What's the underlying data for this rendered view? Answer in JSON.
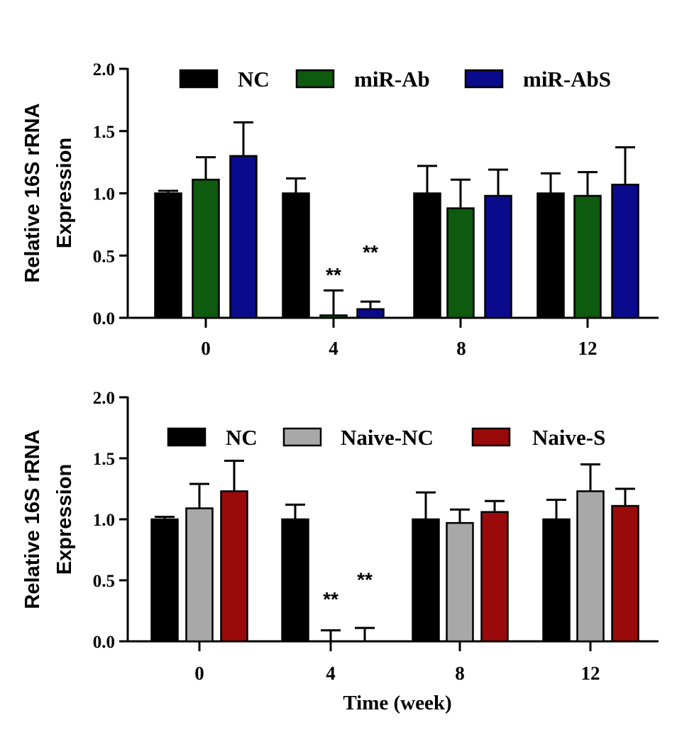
{
  "chart_data": [
    {
      "type": "bar",
      "ylabel": [
        "Relative 16S rRNA",
        "Expression"
      ],
      "xlabel": "",
      "ylim": [
        0,
        2.0
      ],
      "yticks": [
        "0.0",
        "0.5",
        "1.0",
        "1.5",
        "2.0"
      ],
      "categories": [
        "0",
        "4",
        "8",
        "12"
      ],
      "legend_position": "top",
      "series": [
        {
          "name": "NC",
          "color": "#000000",
          "values": [
            1.0,
            1.0,
            1.0,
            1.0
          ],
          "errors": [
            0.02,
            0.12,
            0.22,
            0.16
          ]
        },
        {
          "name": "miR-Ab",
          "color": "#0e5a0e",
          "values": [
            1.11,
            0.02,
            0.88,
            0.98
          ],
          "errors": [
            0.18,
            0.2,
            0.23,
            0.19
          ]
        },
        {
          "name": "miR-AbS",
          "color": "#0a0a8c",
          "values": [
            1.3,
            0.07,
            0.98,
            1.07
          ],
          "errors": [
            0.27,
            0.06,
            0.21,
            0.3
          ]
        }
      ],
      "annotations": [
        {
          "category": "4",
          "series": "miR-Ab",
          "text": "**",
          "y": 0.36
        },
        {
          "category": "4",
          "series": "miR-AbS",
          "text": "**",
          "y": 0.54
        }
      ]
    },
    {
      "type": "bar",
      "ylabel": [
        "Relative 16S rRNA",
        "Expression"
      ],
      "xlabel": "Time (week)",
      "ylim": [
        0,
        2.0
      ],
      "yticks": [
        "0.0",
        "0.5",
        "1.0",
        "1.5",
        "2.0"
      ],
      "categories": [
        "0",
        "4",
        "8",
        "12"
      ],
      "legend_position": "top",
      "series": [
        {
          "name": "NC",
          "color": "#000000",
          "values": [
            1.0,
            1.0,
            1.0,
            1.0
          ],
          "errors": [
            0.02,
            0.12,
            0.22,
            0.16
          ]
        },
        {
          "name": "Naive-NC",
          "color": "#a8a8a8",
          "values": [
            1.09,
            0.0,
            0.97,
            1.23
          ],
          "errors": [
            0.2,
            0.09,
            0.11,
            0.22
          ]
        },
        {
          "name": "Naive-S",
          "color": "#9a0a0a",
          "values": [
            1.23,
            0.0,
            1.06,
            1.11
          ],
          "errors": [
            0.25,
            0.11,
            0.09,
            0.14
          ]
        }
      ],
      "annotations": [
        {
          "category": "4",
          "series": "Naive-NC",
          "text": "**",
          "y": 0.36
        },
        {
          "category": "4",
          "series": "Naive-S",
          "text": "**",
          "y": 0.52
        }
      ]
    }
  ]
}
